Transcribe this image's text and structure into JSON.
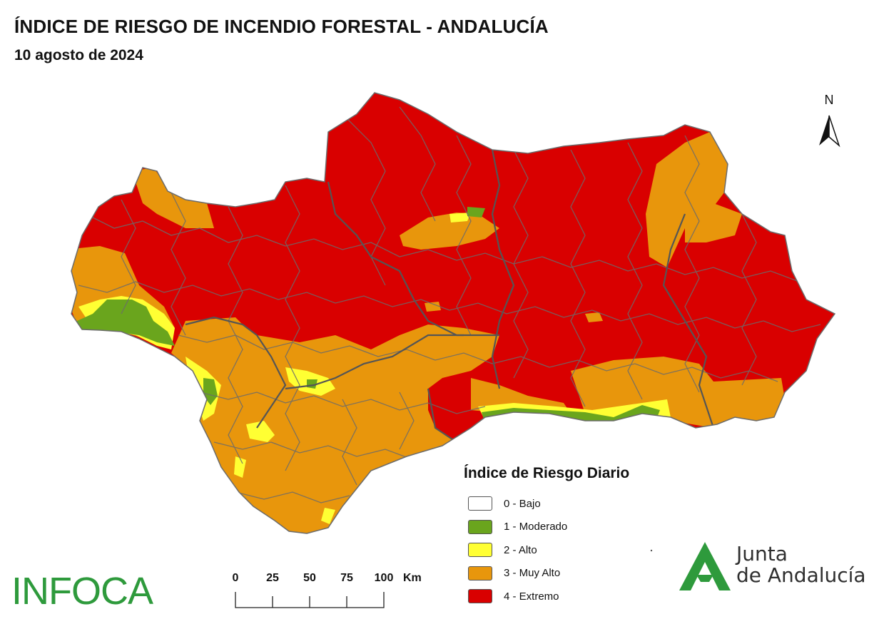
{
  "header": {
    "title": "ÍNDICE DE RIESGO DE INCENDIO FORESTAL - ANDALUCÍA",
    "date": "10 agosto de 2024"
  },
  "north_arrow": {
    "label": "N"
  },
  "legend": {
    "title": "Índice de Riesgo Diario",
    "items": [
      {
        "label": "0 - Bajo",
        "color": "#ffffff"
      },
      {
        "label": "1 - Moderado",
        "color": "#6aa51d"
      },
      {
        "label": "2 - Alto",
        "color": "#ffff33"
      },
      {
        "label": "3 - Muy Alto",
        "color": "#e8960c"
      },
      {
        "label": "4 - Extremo",
        "color": "#d90000"
      }
    ]
  },
  "scale_bar": {
    "ticks": [
      "0",
      "25",
      "50",
      "75",
      "100"
    ],
    "unit": "Km"
  },
  "logos": {
    "infoca": "INFOCA",
    "junta_line1": "Junta",
    "junta_line2": "de Andalucía"
  },
  "colors": {
    "bajo": "#ffffff",
    "moderado": "#6aa51d",
    "alto": "#ffff33",
    "muy_alto": "#e8960c",
    "extremo": "#d90000",
    "boundaries": "#6b6b6b",
    "brand_green": "#2e9a3c"
  }
}
